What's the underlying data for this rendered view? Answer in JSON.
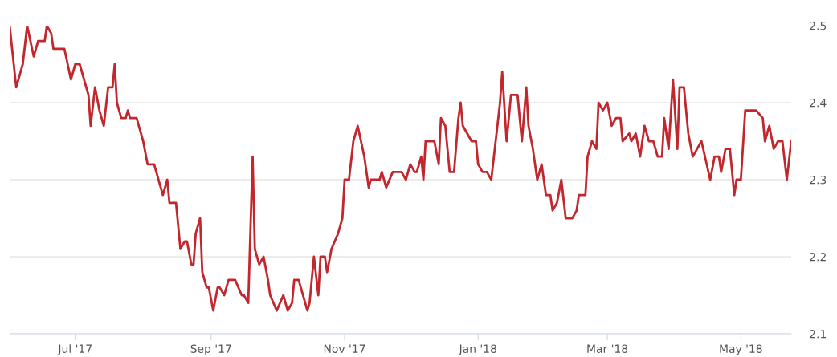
{
  "chart_data": {
    "type": "line",
    "x": [
      "2017-06-01",
      "2017-06-04",
      "2017-06-06",
      "2017-06-07",
      "2017-06-09",
      "2017-06-12",
      "2017-06-14",
      "2017-06-17",
      "2017-06-18",
      "2017-06-20",
      "2017-06-21",
      "2017-06-26",
      "2017-06-29",
      "2017-07-01",
      "2017-07-03",
      "2017-07-06",
      "2017-07-07",
      "2017-07-08",
      "2017-07-10",
      "2017-07-12",
      "2017-07-14",
      "2017-07-16",
      "2017-07-18",
      "2017-07-19",
      "2017-07-20",
      "2017-07-22",
      "2017-07-24",
      "2017-07-25",
      "2017-07-26",
      "2017-07-29",
      "2017-08-01",
      "2017-08-03",
      "2017-08-06",
      "2017-08-10",
      "2017-08-12",
      "2017-08-13",
      "2017-08-16",
      "2017-08-18",
      "2017-08-20",
      "2017-08-21",
      "2017-08-23",
      "2017-08-24",
      "2017-08-25",
      "2017-08-27",
      "2017-08-28",
      "2017-08-30",
      "2017-08-31",
      "2017-09-02",
      "2017-09-04",
      "2017-09-05",
      "2017-09-07",
      "2017-09-09",
      "2017-09-12",
      "2017-09-15",
      "2017-09-16",
      "2017-09-18",
      "2017-09-20",
      "2017-09-21",
      "2017-09-23",
      "2017-09-25",
      "2017-09-27",
      "2017-09-28",
      "2017-10-01",
      "2017-10-04",
      "2017-10-06",
      "2017-10-08",
      "2017-10-09",
      "2017-10-11",
      "2017-10-15",
      "2017-10-16",
      "2017-10-18",
      "2017-10-20",
      "2017-10-21",
      "2017-10-23",
      "2017-10-24",
      "2017-10-26",
      "2017-10-29",
      "2017-10-31",
      "2017-11-01",
      "2017-11-03",
      "2017-11-05",
      "2017-11-07",
      "2017-11-10",
      "2017-11-12",
      "2017-11-13",
      "2017-11-17",
      "2017-11-18",
      "2017-11-20",
      "2017-11-23",
      "2017-11-27",
      "2017-11-29",
      "2017-12-01",
      "2017-12-03",
      "2017-12-04",
      "2017-12-06",
      "2017-12-07",
      "2017-12-08",
      "2017-12-11",
      "2017-12-12",
      "2017-12-14",
      "2017-12-15",
      "2017-12-17",
      "2017-12-19",
      "2017-12-21",
      "2017-12-23",
      "2017-12-24",
      "2017-12-25",
      "2017-12-29",
      "2017-12-31",
      "2018-01-01",
      "2018-01-03",
      "2018-01-05",
      "2018-01-07",
      "2018-01-11",
      "2018-01-12",
      "2018-01-14",
      "2018-01-16",
      "2018-01-19",
      "2018-01-21",
      "2018-01-23",
      "2018-01-24",
      "2018-01-26",
      "2018-01-28",
      "2018-01-30",
      "2018-02-01",
      "2018-02-03",
      "2018-02-04",
      "2018-02-06",
      "2018-02-08",
      "2018-02-10",
      "2018-02-13",
      "2018-02-15",
      "2018-02-16",
      "2018-02-19",
      "2018-02-20",
      "2018-02-22",
      "2018-02-24",
      "2018-02-25",
      "2018-02-27",
      "2018-03-01",
      "2018-03-03",
      "2018-03-05",
      "2018-03-07",
      "2018-03-08",
      "2018-03-11",
      "2018-03-12",
      "2018-03-14",
      "2018-03-16",
      "2018-03-18",
      "2018-03-20",
      "2018-03-22",
      "2018-03-24",
      "2018-03-26",
      "2018-03-27",
      "2018-03-29",
      "2018-03-31",
      "2018-04-02",
      "2018-04-03",
      "2018-04-05",
      "2018-04-07",
      "2018-04-09",
      "2018-04-11",
      "2018-04-13",
      "2018-04-17",
      "2018-04-19",
      "2018-04-21",
      "2018-04-22",
      "2018-04-24",
      "2018-04-26",
      "2018-04-28",
      "2018-04-29",
      "2018-05-01",
      "2018-05-03",
      "2018-05-08",
      "2018-05-11",
      "2018-05-12",
      "2018-05-14",
      "2018-05-16",
      "2018-05-18",
      "2018-05-20",
      "2018-05-22",
      "2018-05-24"
    ],
    "series": [
      {
        "color": "#c1272d",
        "values": [
          2.5,
          2.42,
          2.44,
          2.45,
          2.5,
          2.46,
          2.48,
          2.48,
          2.5,
          2.49,
          2.47,
          2.47,
          2.43,
          2.45,
          2.45,
          2.42,
          2.41,
          2.37,
          2.42,
          2.39,
          2.37,
          2.42,
          2.42,
          2.45,
          2.4,
          2.38,
          2.38,
          2.39,
          2.38,
          2.38,
          2.35,
          2.32,
          2.32,
          2.28,
          2.3,
          2.27,
          2.27,
          2.21,
          2.22,
          2.22,
          2.19,
          2.19,
          2.23,
          2.25,
          2.18,
          2.16,
          2.16,
          2.13,
          2.16,
          2.16,
          2.15,
          2.17,
          2.17,
          2.15,
          2.15,
          2.14,
          2.33,
          2.21,
          2.19,
          2.2,
          2.17,
          2.15,
          2.13,
          2.15,
          2.13,
          2.14,
          2.17,
          2.17,
          2.13,
          2.14,
          2.2,
          2.15,
          2.2,
          2.2,
          2.18,
          2.21,
          2.23,
          2.25,
          2.3,
          2.3,
          2.35,
          2.37,
          2.33,
          2.29,
          2.3,
          2.3,
          2.31,
          2.29,
          2.31,
          2.31,
          2.3,
          2.32,
          2.31,
          2.31,
          2.33,
          2.3,
          2.35,
          2.35,
          2.35,
          2.32,
          2.38,
          2.37,
          2.31,
          2.31,
          2.38,
          2.4,
          2.37,
          2.35,
          2.35,
          2.32,
          2.31,
          2.31,
          2.3,
          2.4,
          2.44,
          2.35,
          2.41,
          2.41,
          2.35,
          2.42,
          2.37,
          2.34,
          2.3,
          2.32,
          2.28,
          2.28,
          2.26,
          2.27,
          2.3,
          2.25,
          2.25,
          2.26,
          2.28,
          2.28,
          2.33,
          2.35,
          2.34,
          2.4,
          2.39,
          2.4,
          2.37,
          2.38,
          2.38,
          2.35,
          2.36,
          2.35,
          2.36,
          2.33,
          2.37,
          2.35,
          2.35,
          2.33,
          2.33,
          2.38,
          2.34,
          2.43,
          2.34,
          2.42,
          2.42,
          2.36,
          2.33,
          2.34,
          2.35,
          2.3,
          2.33,
          2.33,
          2.31,
          2.34,
          2.34,
          2.28,
          2.3,
          2.3,
          2.39,
          2.39,
          2.38,
          2.35,
          2.37,
          2.34,
          2.35,
          2.35,
          2.3,
          2.35
        ]
      }
    ],
    "xlim": [
      "2017-06-01",
      "2018-05-24"
    ],
    "xticks": [
      {
        "value": "2017-07-01",
        "label": "Jul '17"
      },
      {
        "value": "2017-09-01",
        "label": "Sep '17"
      },
      {
        "value": "2017-11-01",
        "label": "Nov '17"
      },
      {
        "value": "2018-01-01",
        "label": "Jan '18"
      },
      {
        "value": "2018-03-01",
        "label": "Mar '18"
      },
      {
        "value": "2018-05-01",
        "label": "May '18"
      }
    ],
    "ylim": [
      2.1,
      2.5
    ],
    "yticks": [
      2.1,
      2.2,
      2.3,
      2.4,
      2.5
    ],
    "grid": "y",
    "legend": false,
    "marker": "none",
    "line_style": "solid"
  }
}
